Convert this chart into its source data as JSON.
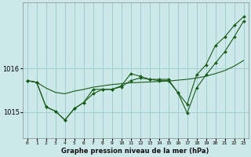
{
  "background_color": "#cce8e8",
  "grid_color": "#99cccc",
  "line_color": "#1a5c1a",
  "title": "Graphe pression niveau de la mer (hPa)",
  "ylabel_ticks": [
    1015,
    1016
  ],
  "x_labels": [
    "0",
    "1",
    "2",
    "3",
    "4",
    "5",
    "6",
    "7",
    "8",
    "9",
    "10",
    "11",
    "12",
    "13",
    "14",
    "15",
    "16",
    "17",
    "18",
    "19",
    "20",
    "21",
    "22",
    "23"
  ],
  "xlim": [
    -0.5,
    23.5
  ],
  "ylim": [
    1014.4,
    1017.5
  ],
  "series1": [
    1015.72,
    1015.68,
    1015.55,
    1015.45,
    1015.42,
    1015.48,
    1015.52,
    1015.57,
    1015.6,
    1015.63,
    1015.65,
    1015.67,
    1015.68,
    1015.69,
    1015.7,
    1015.71,
    1015.73,
    1015.75,
    1015.78,
    1015.82,
    1015.88,
    1015.95,
    1016.05,
    1016.18
  ],
  "series2": [
    1015.72,
    1015.68,
    1015.12,
    1015.02,
    1014.82,
    1015.08,
    1015.22,
    1015.52,
    1015.52,
    1015.52,
    1015.58,
    1015.72,
    1015.78,
    1015.75,
    1015.75,
    1015.75,
    1015.45,
    1014.98,
    1015.55,
    1015.85,
    1016.12,
    1016.38,
    1016.72,
    1017.08
  ],
  "series3": [
    1015.72,
    1015.68,
    1015.12,
    1015.02,
    1014.82,
    1015.08,
    1015.22,
    1015.42,
    1015.52,
    1015.52,
    1015.6,
    1015.88,
    1015.82,
    1015.75,
    1015.72,
    1015.72,
    1015.45,
    1015.18,
    1015.85,
    1016.08,
    1016.52,
    1016.72,
    1016.98,
    1017.18
  ]
}
